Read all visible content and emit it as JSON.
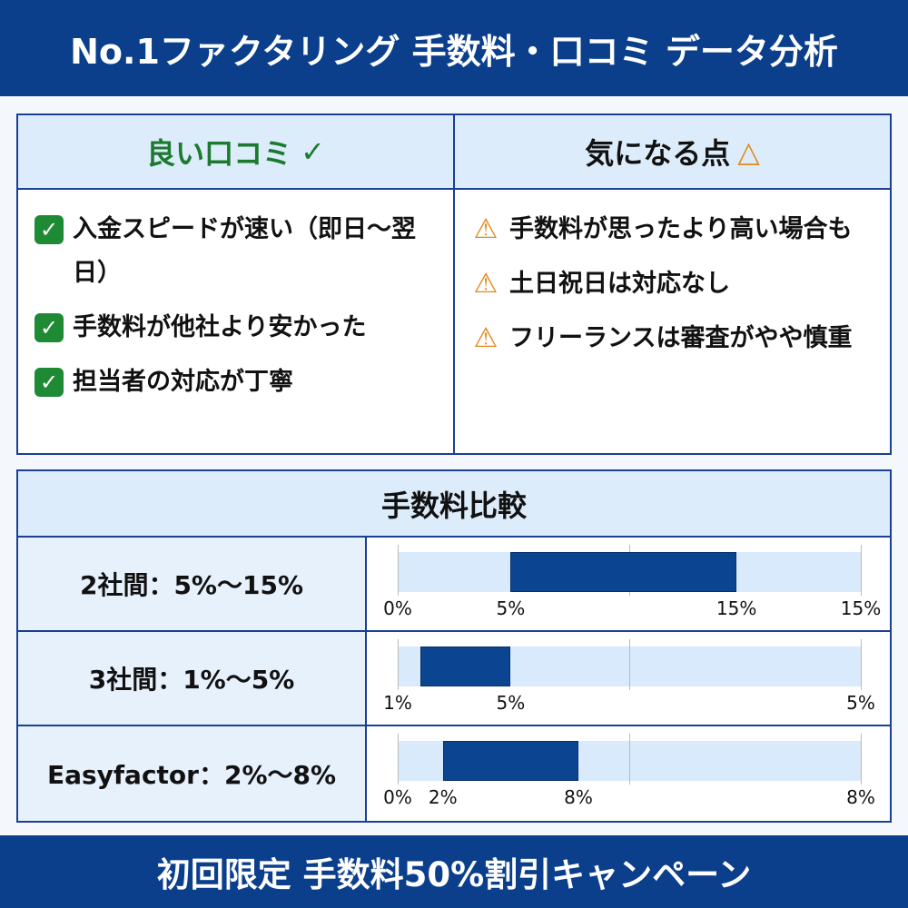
{
  "header": {
    "title": "No.1ファクタリング 手数料・口コミ データ分析"
  },
  "reviews": {
    "good": {
      "title": "良い口コミ",
      "title_mark": "✓",
      "icon": "check-box-icon",
      "items": [
        "入金スピードが速い（即日〜翌日）",
        "手数料が他社より安かった",
        "担当者の対応が丁寧"
      ]
    },
    "concerns": {
      "title": "気になる点",
      "title_mark": "△",
      "icon": "warning-icon",
      "items": [
        "手数料が思ったより高い場合も",
        "土日祝日は対応なし",
        "フリーランスは審査がやや慎重"
      ]
    }
  },
  "colors": {
    "brand": "#0b3f8c",
    "good": "#1e8a34",
    "warn": "#e08a1e",
    "bar": "#0b4490",
    "track": "#d8eafb"
  },
  "chart_data": {
    "type": "bar",
    "title": "手数料比較",
    "rows": [
      {
        "label": "2社間：5%〜15%",
        "low": 5,
        "high": 15,
        "ticks": [
          "0%",
          "5%",
          "15%",
          "15%"
        ]
      },
      {
        "label": "3社間：1%〜5%",
        "low": 1,
        "high": 5,
        "ticks": [
          "1%",
          "5%",
          "5%"
        ]
      },
      {
        "label": "Easyfactor：2%〜8%",
        "low": 2,
        "high": 8,
        "ticks": [
          "0%",
          "2%",
          "8%",
          "8%"
        ]
      }
    ]
  },
  "footer": {
    "text": "初回限定 手数料50%割引キャンペーン"
  }
}
